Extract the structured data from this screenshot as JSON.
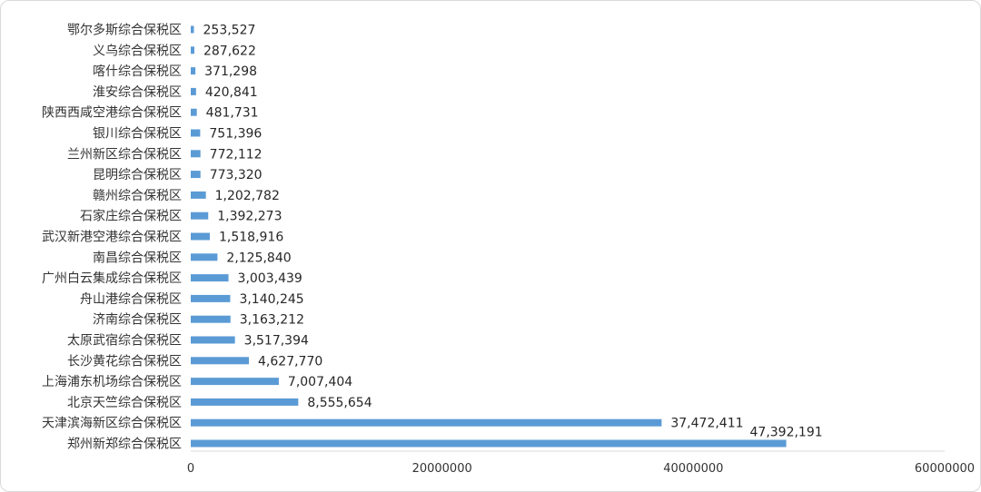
{
  "chart_data": {
    "type": "bar",
    "orientation": "horizontal",
    "title": "",
    "xlabel": "",
    "ylabel": "",
    "categories": [
      "鄂尔多斯综合保税区",
      "义乌综合保税区",
      "喀什综合保税区",
      "淮安综合保税区",
      "陕西西咸空港综合保税区",
      "银川综合保税区",
      "兰州新区综合保税区",
      "昆明综合保税区",
      "赣州综合保税区",
      "石家庄综合保税区",
      "武汉新港空港综合保税区",
      "南昌综合保税区",
      "广州白云集成综合保税区",
      "舟山港综合保税区",
      "济南综合保税区",
      "太原武宿综合保税区",
      "长沙黄花综合保税区",
      "上海浦东机场综合保税区",
      "北京天竺综合保税区",
      "天津滨海新区综合保税区",
      "郑州新郑综合保税区"
    ],
    "values": [
      253527,
      287622,
      371298,
      420841,
      481731,
      751396,
      772112,
      773320,
      1202782,
      1392273,
      1518916,
      2125840,
      3003439,
      3140245,
      3163212,
      3517394,
      4627770,
      7007404,
      8555654,
      37472411,
      47392191
    ],
    "value_labels": [
      "253,527",
      "287,622",
      "371,298",
      "420,841",
      "481,731",
      "751,396",
      "772,112",
      "773,320",
      "1,202,782",
      "1,392,273",
      "1,518,916",
      "2,125,840",
      "3,003,439",
      "3,140,245",
      "3,163,212",
      "3,517,394",
      "4,627,770",
      "7,007,404",
      "8,555,654",
      "37,472,411",
      "47,392,191"
    ],
    "xlim": [
      0,
      60000000
    ],
    "x_ticks": [
      "0",
      "20000000",
      "40000000",
      "60000000"
    ],
    "grid": false,
    "legend": "none",
    "bar_color": "#5b9bd5",
    "axis_color": "#d9d9d9"
  }
}
